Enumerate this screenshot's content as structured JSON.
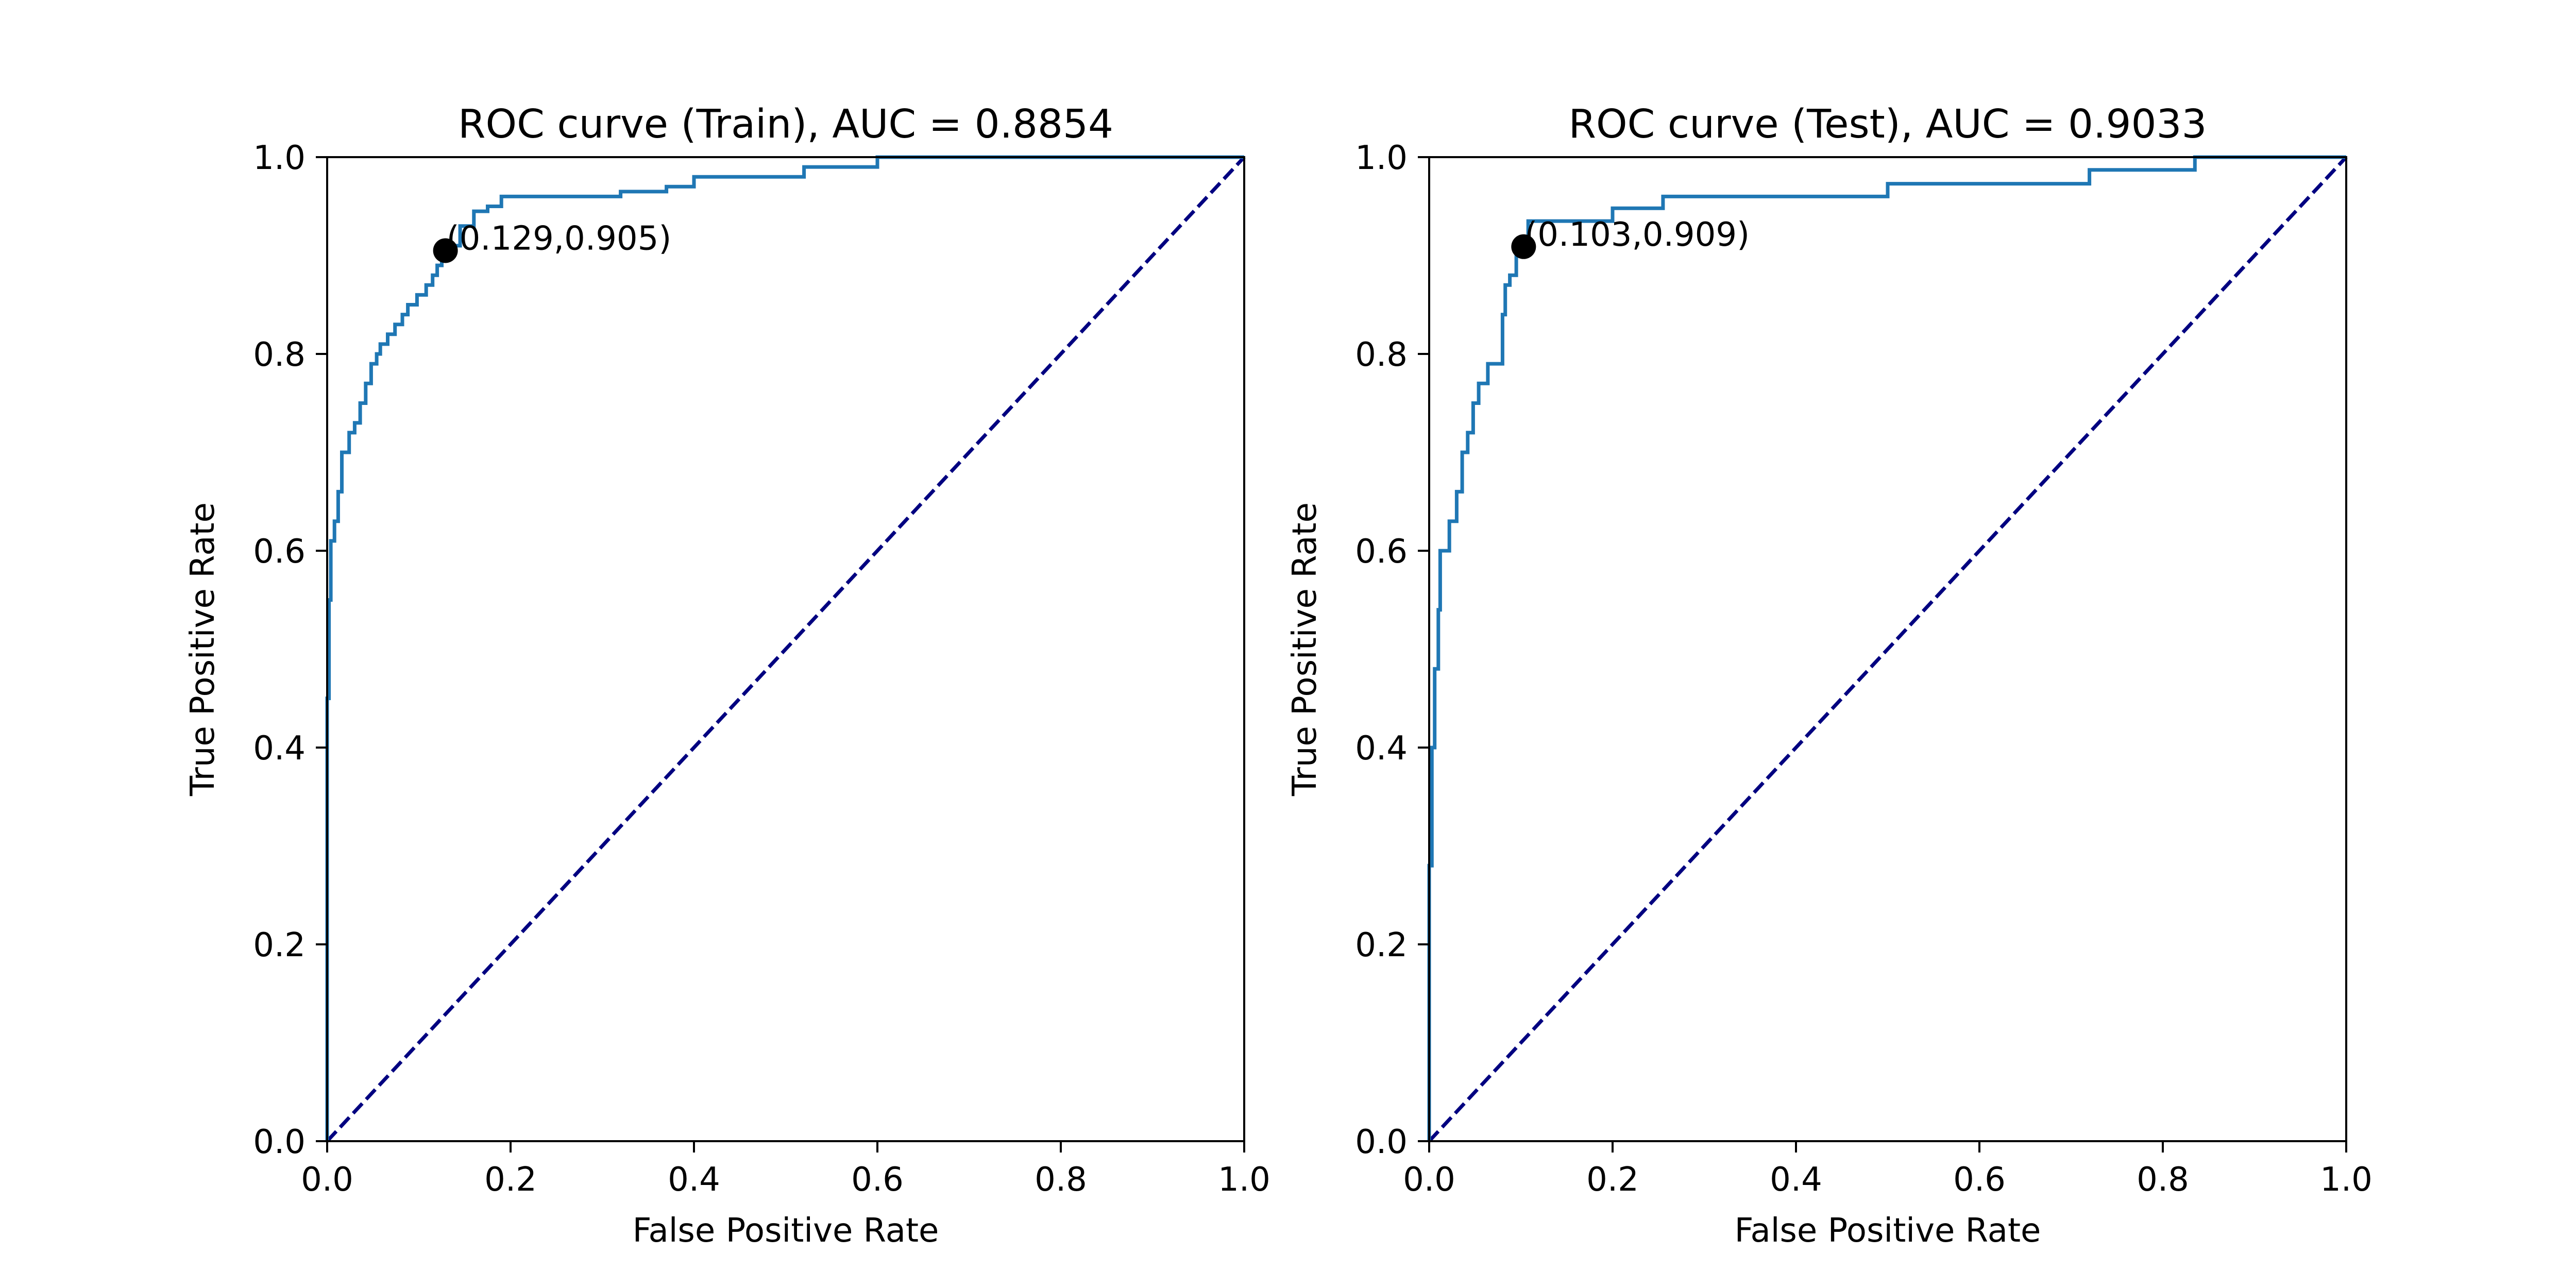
{
  "chart_data": [
    {
      "type": "line",
      "title": "ROC curve (Train), AUC = 0.8854",
      "xlabel": "False Positive Rate",
      "ylabel": "True Positive Rate",
      "xlim": [
        0.0,
        1.0
      ],
      "ylim": [
        0.0,
        1.0
      ],
      "xticks": [
        "0.0",
        "0.2",
        "0.4",
        "0.6",
        "0.8",
        "1.0"
      ],
      "yticks": [
        "0.0",
        "0.2",
        "0.4",
        "0.6",
        "0.8",
        "1.0"
      ],
      "grid": false,
      "series": [
        {
          "color": "#1f77b4",
          "style": "solid",
          "points": [
            [
              0.0,
              0.0
            ],
            [
              0.0,
              0.45
            ],
            [
              0.002,
              0.45
            ],
            [
              0.002,
              0.55
            ],
            [
              0.004,
              0.55
            ],
            [
              0.004,
              0.61
            ],
            [
              0.008,
              0.61
            ],
            [
              0.008,
              0.63
            ],
            [
              0.012,
              0.63
            ],
            [
              0.012,
              0.66
            ],
            [
              0.016,
              0.66
            ],
            [
              0.016,
              0.7
            ],
            [
              0.024,
              0.7
            ],
            [
              0.024,
              0.72
            ],
            [
              0.03,
              0.72
            ],
            [
              0.03,
              0.73
            ],
            [
              0.036,
              0.73
            ],
            [
              0.036,
              0.75
            ],
            [
              0.042,
              0.75
            ],
            [
              0.042,
              0.77
            ],
            [
              0.048,
              0.77
            ],
            [
              0.048,
              0.79
            ],
            [
              0.054,
              0.79
            ],
            [
              0.054,
              0.8
            ],
            [
              0.058,
              0.8
            ],
            [
              0.058,
              0.81
            ],
            [
              0.066,
              0.81
            ],
            [
              0.066,
              0.82
            ],
            [
              0.074,
              0.82
            ],
            [
              0.074,
              0.83
            ],
            [
              0.082,
              0.83
            ],
            [
              0.082,
              0.84
            ],
            [
              0.088,
              0.84
            ],
            [
              0.088,
              0.85
            ],
            [
              0.098,
              0.85
            ],
            [
              0.098,
              0.86
            ],
            [
              0.108,
              0.86
            ],
            [
              0.108,
              0.87
            ],
            [
              0.115,
              0.87
            ],
            [
              0.115,
              0.88
            ],
            [
              0.12,
              0.88
            ],
            [
              0.12,
              0.89
            ],
            [
              0.125,
              0.89
            ],
            [
              0.125,
              0.897
            ],
            [
              0.129,
              0.897
            ],
            [
              0.129,
              0.905
            ],
            [
              0.135,
              0.905
            ],
            [
              0.135,
              0.91
            ],
            [
              0.145,
              0.91
            ],
            [
              0.145,
              0.93
            ],
            [
              0.16,
              0.93
            ],
            [
              0.16,
              0.945
            ],
            [
              0.175,
              0.945
            ],
            [
              0.175,
              0.95
            ],
            [
              0.19,
              0.95
            ],
            [
              0.19,
              0.96
            ],
            [
              0.32,
              0.96
            ],
            [
              0.32,
              0.965
            ],
            [
              0.37,
              0.965
            ],
            [
              0.37,
              0.97
            ],
            [
              0.4,
              0.97
            ],
            [
              0.4,
              0.98
            ],
            [
              0.52,
              0.98
            ],
            [
              0.52,
              0.99
            ],
            [
              0.6,
              0.99
            ],
            [
              0.6,
              1.0
            ],
            [
              1.0,
              1.0
            ]
          ]
        },
        {
          "color": "#000080",
          "style": "dashed",
          "points": [
            [
              0.0,
              0.0
            ],
            [
              1.0,
              1.0
            ]
          ]
        }
      ],
      "marker": {
        "x": 0.129,
        "y": 0.905,
        "color": "#000000"
      },
      "annotation": "(0.129,0.905)"
    },
    {
      "type": "line",
      "title": "ROC curve (Test), AUC = 0.9033",
      "xlabel": "False Positive Rate",
      "ylabel": "True Positive Rate",
      "xlim": [
        0.0,
        1.0
      ],
      "ylim": [
        0.0,
        1.0
      ],
      "xticks": [
        "0.0",
        "0.2",
        "0.4",
        "0.6",
        "0.8",
        "1.0"
      ],
      "yticks": [
        "0.0",
        "0.2",
        "0.4",
        "0.6",
        "0.8",
        "1.0"
      ],
      "grid": false,
      "series": [
        {
          "color": "#1f77b4",
          "style": "solid",
          "points": [
            [
              0.0,
              0.0
            ],
            [
              0.0,
              0.28
            ],
            [
              0.003,
              0.28
            ],
            [
              0.003,
              0.4
            ],
            [
              0.006,
              0.4
            ],
            [
              0.006,
              0.48
            ],
            [
              0.01,
              0.48
            ],
            [
              0.01,
              0.54
            ],
            [
              0.012,
              0.54
            ],
            [
              0.012,
              0.6
            ],
            [
              0.022,
              0.6
            ],
            [
              0.022,
              0.63
            ],
            [
              0.03,
              0.63
            ],
            [
              0.03,
              0.66
            ],
            [
              0.036,
              0.66
            ],
            [
              0.036,
              0.7
            ],
            [
              0.042,
              0.7
            ],
            [
              0.042,
              0.72
            ],
            [
              0.048,
              0.72
            ],
            [
              0.048,
              0.75
            ],
            [
              0.054,
              0.75
            ],
            [
              0.054,
              0.77
            ],
            [
              0.064,
              0.77
            ],
            [
              0.064,
              0.79
            ],
            [
              0.08,
              0.79
            ],
            [
              0.08,
              0.84
            ],
            [
              0.083,
              0.84
            ],
            [
              0.083,
              0.87
            ],
            [
              0.088,
              0.87
            ],
            [
              0.088,
              0.88
            ],
            [
              0.095,
              0.88
            ],
            [
              0.095,
              0.9
            ],
            [
              0.103,
              0.9
            ],
            [
              0.103,
              0.909
            ],
            [
              0.108,
              0.909
            ],
            [
              0.108,
              0.935
            ],
            [
              0.2,
              0.935
            ],
            [
              0.2,
              0.948
            ],
            [
              0.255,
              0.948
            ],
            [
              0.255,
              0.96
            ],
            [
              0.5,
              0.96
            ],
            [
              0.5,
              0.973
            ],
            [
              0.72,
              0.973
            ],
            [
              0.72,
              0.987
            ],
            [
              0.835,
              0.987
            ],
            [
              0.835,
              1.0
            ],
            [
              1.0,
              1.0
            ]
          ]
        },
        {
          "color": "#000080",
          "style": "dashed",
          "points": [
            [
              0.0,
              0.0
            ],
            [
              1.0,
              1.0
            ]
          ]
        }
      ],
      "marker": {
        "x": 0.103,
        "y": 0.909,
        "color": "#000000"
      },
      "annotation": "(0.103,0.909)"
    }
  ]
}
